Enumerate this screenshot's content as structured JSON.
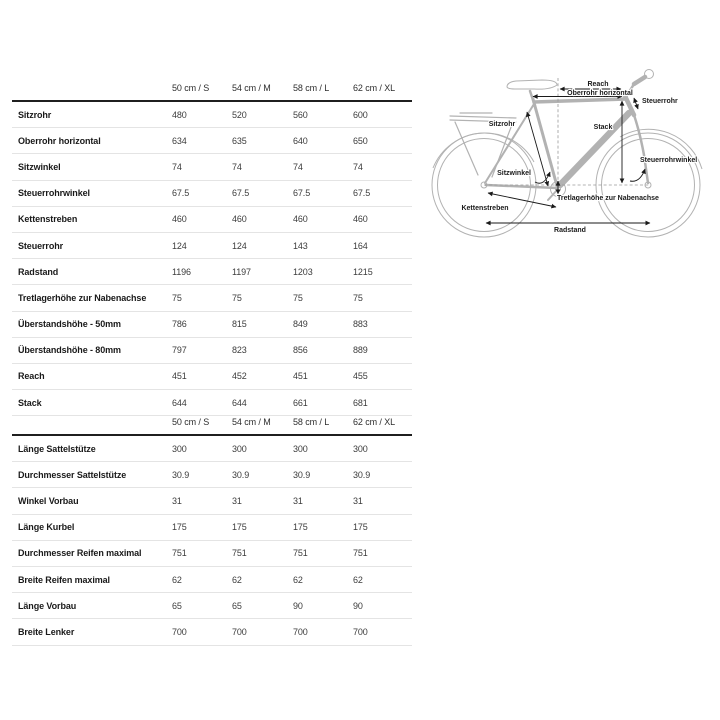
{
  "colors": {
    "background": "#ffffff",
    "header_rule": "#1f1f1f",
    "row_rule": "#e4e4e4",
    "label_text": "#1a1a1a",
    "value_text": "#3c3c3c",
    "bike_outline": "#b2b2b2",
    "annotation": "#1a1a1a"
  },
  "sections": [
    {
      "headers": [
        "50 cm / S",
        "54 cm / M",
        "58 cm / L",
        "62 cm / XL"
      ],
      "rows": [
        {
          "label": "Sitzrohr",
          "values": [
            "480",
            "520",
            "560",
            "600"
          ]
        },
        {
          "label": "Oberrohr horizontal",
          "values": [
            "634",
            "635",
            "640",
            "650"
          ]
        },
        {
          "label": "Sitzwinkel",
          "values": [
            "74",
            "74",
            "74",
            "74"
          ]
        },
        {
          "label": "Steuerrohrwinkel",
          "values": [
            "67.5",
            "67.5",
            "67.5",
            "67.5"
          ]
        },
        {
          "label": "Kettenstreben",
          "values": [
            "460",
            "460",
            "460",
            "460"
          ]
        },
        {
          "label": "Steuerrohr",
          "values": [
            "124",
            "124",
            "143",
            "164"
          ]
        },
        {
          "label": "Radstand",
          "values": [
            "1196",
            "1197",
            "1203",
            "1215"
          ]
        },
        {
          "label": "Tretlagerhöhe zur Nabenachse",
          "values": [
            "75",
            "75",
            "75",
            "75"
          ]
        },
        {
          "label": "Überstandshöhe - 50mm",
          "values": [
            "786",
            "815",
            "849",
            "883"
          ]
        },
        {
          "label": "Überstandshöhe - 80mm",
          "values": [
            "797",
            "823",
            "856",
            "889"
          ]
        },
        {
          "label": "Reach",
          "values": [
            "451",
            "452",
            "451",
            "455"
          ]
        },
        {
          "label": "Stack",
          "values": [
            "644",
            "644",
            "661",
            "681"
          ]
        }
      ]
    },
    {
      "headers": [
        "50 cm / S",
        "54 cm / M",
        "58 cm / L",
        "62 cm / XL"
      ],
      "rows": [
        {
          "label": "Länge Sattelstütze",
          "values": [
            "300",
            "300",
            "300",
            "300"
          ]
        },
        {
          "label": "Durchmesser Sattelstütze",
          "values": [
            "30.9",
            "30.9",
            "30.9",
            "30.9"
          ]
        },
        {
          "label": "Winkel Vorbau",
          "values": [
            "31",
            "31",
            "31",
            "31"
          ]
        },
        {
          "label": "Länge Kurbel",
          "values": [
            "175",
            "175",
            "175",
            "175"
          ]
        },
        {
          "label": "Durchmesser Reifen maximal",
          "values": [
            "751",
            "751",
            "751",
            "751"
          ]
        },
        {
          "label": "Breite Reifen maximal",
          "values": [
            "62",
            "62",
            "62",
            "62"
          ]
        },
        {
          "label": "Länge Vorbau",
          "values": [
            "65",
            "65",
            "90",
            "90"
          ]
        },
        {
          "label": "Breite Lenker",
          "values": [
            "700",
            "700",
            "700",
            "700"
          ]
        }
      ]
    }
  ],
  "diagram": {
    "labels": {
      "reach": "Reach",
      "oberrohr": "Oberrohr horizontal",
      "steuerrohr": "Steuerrohr",
      "sitzrohr": "Sitzrohr",
      "stack": "Stack",
      "steuerrohrwinkel": "Steuerrohrwinkel",
      "sitzwinkel": "Sitzwinkel",
      "tretlager": "Tretlagerhöhe zur Nabenachse",
      "kettenstreben": "Kettenstreben",
      "radstand": "Radstand"
    }
  }
}
